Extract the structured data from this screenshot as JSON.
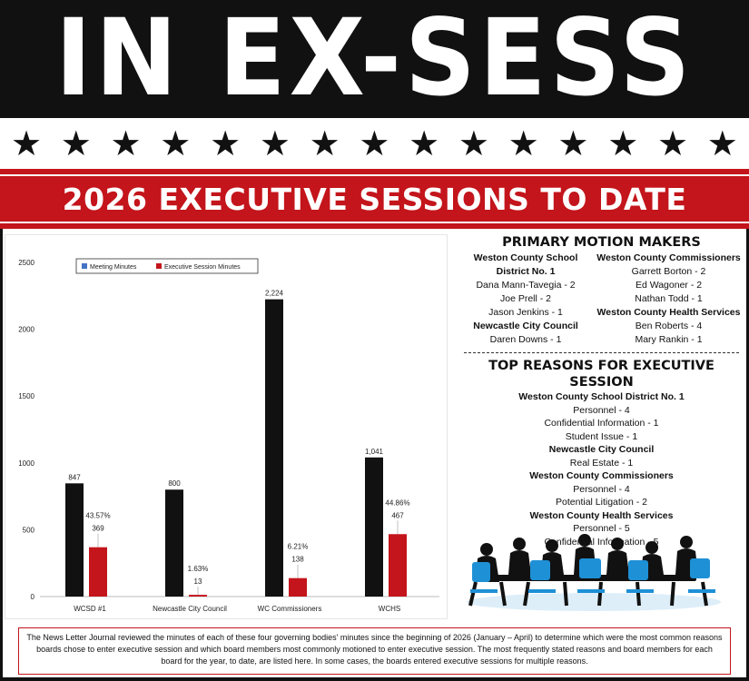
{
  "masthead": {
    "title": "IN EX-SESS"
  },
  "stars": {
    "count": 15,
    "glyph": "★"
  },
  "banner": {
    "title": "2026 EXECUTIVE SESSIONS TO DATE"
  },
  "colors": {
    "black": "#111111",
    "red": "#c3151b",
    "meeting_blue": "#4472c4",
    "chair_blue": "#1e90d6"
  },
  "chart_data": {
    "type": "bar",
    "categories": [
      "WCSD #1",
      "Newcastle City Council",
      "WC Commissioners",
      "WCHS"
    ],
    "series": [
      {
        "name": "Meeting Minutes",
        "legend_color": "#4472c4",
        "bar_color": "#111111",
        "values": [
          847,
          800,
          2224,
          1041
        ],
        "labels": [
          "847",
          "800",
          "2,224",
          "1,041"
        ]
      },
      {
        "name": "Executive Session Minutes",
        "legend_color": "#c3151b",
        "bar_color": "#c3151b",
        "values": [
          369,
          13,
          138,
          467
        ],
        "labels": [
          "369",
          "13",
          "138",
          "467"
        ],
        "percent_labels": [
          "43.57%",
          "1.63%",
          "6.21%",
          "44.86%"
        ]
      }
    ],
    "ylim": [
      0,
      2500
    ],
    "yticks": [
      "0",
      "500",
      "1000",
      "1500",
      "2000",
      "2500"
    ],
    "ytick_values": [
      0,
      500,
      1000,
      1500,
      2000,
      2500
    ],
    "legend_position": "top",
    "grid": false
  },
  "motion_makers": {
    "title": "PRIMARY MOTION MAKERS",
    "left": [
      {
        "kind": "group",
        "text": "Weston County School"
      },
      {
        "kind": "group",
        "text": "District No. 1"
      },
      {
        "kind": "item",
        "text": "Dana Mann-Tavegia - 2"
      },
      {
        "kind": "item",
        "text": "Joe Prell - 2"
      },
      {
        "kind": "item",
        "text": "Jason Jenkins - 1"
      },
      {
        "kind": "group",
        "text": "Newcastle City Council"
      },
      {
        "kind": "item",
        "text": "Daren Downs - 1"
      }
    ],
    "right": [
      {
        "kind": "group",
        "text": "Weston County Commissioners"
      },
      {
        "kind": "item",
        "text": "Garrett Borton - 2"
      },
      {
        "kind": "item",
        "text": "Ed Wagoner - 2"
      },
      {
        "kind": "item",
        "text": "Nathan Todd - 1"
      },
      {
        "kind": "group",
        "text": "Weston County Health Services"
      },
      {
        "kind": "item",
        "text": "Ben Roberts - 4"
      },
      {
        "kind": "item",
        "text": "Mary Rankin - 1"
      }
    ]
  },
  "reasons": {
    "title": "TOP REASONS FOR EXECUTIVE SESSION",
    "lines": [
      {
        "kind": "group",
        "text": "Weston County School District No. 1"
      },
      {
        "kind": "item",
        "text": "Personnel - 4"
      },
      {
        "kind": "item",
        "text": "Confidential Information - 1"
      },
      {
        "kind": "item",
        "text": "Student Issue - 1"
      },
      {
        "kind": "group",
        "text": "Newcastle City Council"
      },
      {
        "kind": "item",
        "text": "Real Estate - 1"
      },
      {
        "kind": "group",
        "text": "Weston County Commissioners"
      },
      {
        "kind": "item",
        "text": "Personnel - 4"
      },
      {
        "kind": "item",
        "text": "Potential Litigation - 2"
      },
      {
        "kind": "group",
        "text": "Weston County Health Services"
      },
      {
        "kind": "item",
        "text": "Personnel - 5"
      },
      {
        "kind": "item",
        "text": "Confidential Information - 5"
      }
    ]
  },
  "footer": {
    "text": "The News Letter Journal reviewed the minutes of each of these four governing bodies' minutes since the beginning of 2026 (January – April)  to determine which were the most common reasons boards chose to enter executive session and which board members most commonly motioned to enter executive session. The most frequently stated reasons and board members for each board for the year, to date, are listed here.  In some cases, the boards entered executive sessions for multiple reasons."
  }
}
